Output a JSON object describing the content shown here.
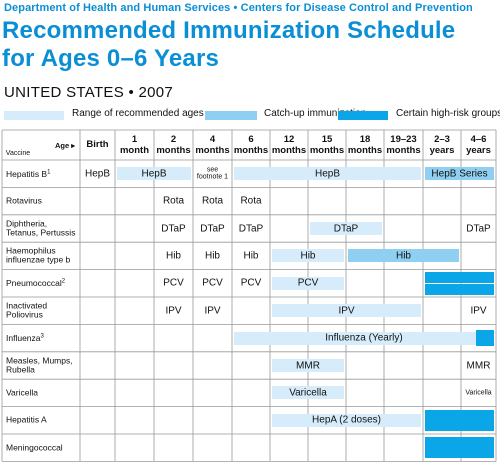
{
  "header": {
    "agencies": "Department of Health and Human Services  •  Centers for Disease Control and Prevention",
    "title_line1": "Recommended  Immunization Schedule",
    "title_line2": "for Ages  0–6 Years",
    "subtitle": "UNITED STATES • 2007"
  },
  "legend": {
    "items": [
      {
        "label": "Range of recommended ages",
        "color": "#d6ecfa"
      },
      {
        "label": "Catch-up immunization",
        "color": "#8fd0f2"
      },
      {
        "label": "Certain high-risk groups",
        "color": "#0aa6e8"
      }
    ]
  },
  "table": {
    "corner_vaccine": "Vaccine",
    "corner_age": "Age ▸",
    "columns": [
      {
        "l1": "Birth",
        "l2": ""
      },
      {
        "l1": "1",
        "l2": "month"
      },
      {
        "l1": "2",
        "l2": "months"
      },
      {
        "l1": "4",
        "l2": "months"
      },
      {
        "l1": "6",
        "l2": "months"
      },
      {
        "l1": "12",
        "l2": "months"
      },
      {
        "l1": "15",
        "l2": "months"
      },
      {
        "l1": "18",
        "l2": "months"
      },
      {
        "l1": "19–23",
        "l2": "months"
      },
      {
        "l1": "2–3",
        "l2": "years"
      },
      {
        "l1": "4–6",
        "l2": "years"
      }
    ],
    "rows": [
      {
        "name": "Hepatitis B",
        "sup": "1",
        "cells": {
          "0": "HepB",
          "3": "see footnote 1"
        },
        "bars": [
          {
            "from": 1,
            "to": 2,
            "label": "HepB",
            "kind": "range"
          },
          {
            "from": 4,
            "to": 8,
            "label": "HepB",
            "kind": "range"
          },
          {
            "from": 9,
            "to": 10,
            "label": "HepB Series",
            "kind": "catchup"
          }
        ]
      },
      {
        "name": "Rotavirus",
        "sup": "",
        "cells": {
          "2": "Rota",
          "3": "Rota",
          "4": "Rota"
        },
        "bars": []
      },
      {
        "name": "Diphtheria,\nTetanus, Pertussis",
        "sup": "",
        "cells": {
          "2": "DTaP",
          "3": "DTaP",
          "4": "DTaP",
          "10": "DTaP"
        },
        "bars": [
          {
            "from": 6,
            "to": 7,
            "label": "DTaP",
            "kind": "range"
          }
        ]
      },
      {
        "name": "Haemophilus\ninfluenzae type b",
        "sup": "",
        "cells": {
          "2": "Hib",
          "3": "Hib",
          "4": "Hib"
        },
        "bars": [
          {
            "from": 5,
            "to": 6,
            "label": "Hib",
            "kind": "range"
          },
          {
            "from": 7,
            "to": 9,
            "label": "Hib",
            "kind": "catchup"
          }
        ]
      },
      {
        "name": "Pneumococcal",
        "sup": "2",
        "cells": {
          "2": "PCV",
          "3": "PCV",
          "4": "PCV"
        },
        "bars": [
          {
            "from": 5,
            "to": 6,
            "label": "PCV",
            "kind": "range"
          },
          {
            "from": 9,
            "to": 10,
            "label": "",
            "kind": "highrisk",
            "half": "top"
          },
          {
            "from": 9,
            "to": 10,
            "label": "",
            "kind": "highrisk",
            "half": "bottom"
          }
        ]
      },
      {
        "name": "Inactivated\nPoliovirus",
        "sup": "",
        "cells": {
          "2": "IPV",
          "3": "IPV",
          "10": "IPV"
        },
        "bars": [
          {
            "from": 5,
            "to": 8,
            "label": "IPV",
            "kind": "range"
          }
        ]
      },
      {
        "name": "Influenza",
        "sup": "3",
        "cells": {},
        "bars": [
          {
            "from": 4,
            "to": 10,
            "label": "Influenza (Yearly)",
            "kind": "range"
          },
          {
            "from": 10,
            "to": 10,
            "label": "",
            "kind": "highrisk",
            "partial": true
          }
        ]
      },
      {
        "name": "Measles, Mumps,\nRubella",
        "sup": "",
        "cells": {
          "10": "MMR"
        },
        "bars": [
          {
            "from": 5,
            "to": 6,
            "label": "MMR",
            "kind": "range"
          }
        ]
      },
      {
        "name": "Varicella",
        "sup": "",
        "cells": {
          "10": "Varicella"
        },
        "bars": [
          {
            "from": 5,
            "to": 6,
            "label": "Varicella",
            "kind": "range"
          }
        ]
      },
      {
        "name": "Hepatitis A",
        "sup": "",
        "cells": {},
        "bars": [
          {
            "from": 5,
            "to": 8,
            "label": "HepA (2 doses)",
            "kind": "range"
          },
          {
            "from": 9,
            "to": 10,
            "label": "",
            "kind": "highrisk"
          }
        ]
      },
      {
        "name": "Meningococcal",
        "sup": "",
        "cells": {},
        "bars": [
          {
            "from": 9,
            "to": 10,
            "label": "",
            "kind": "highrisk"
          }
        ]
      }
    ]
  },
  "colors": {
    "range": "#d6ecfa",
    "catchup": "#8fd0f2",
    "highrisk": "#0aa6e8",
    "brand": "#0a8fd6",
    "grid": "#999999"
  }
}
